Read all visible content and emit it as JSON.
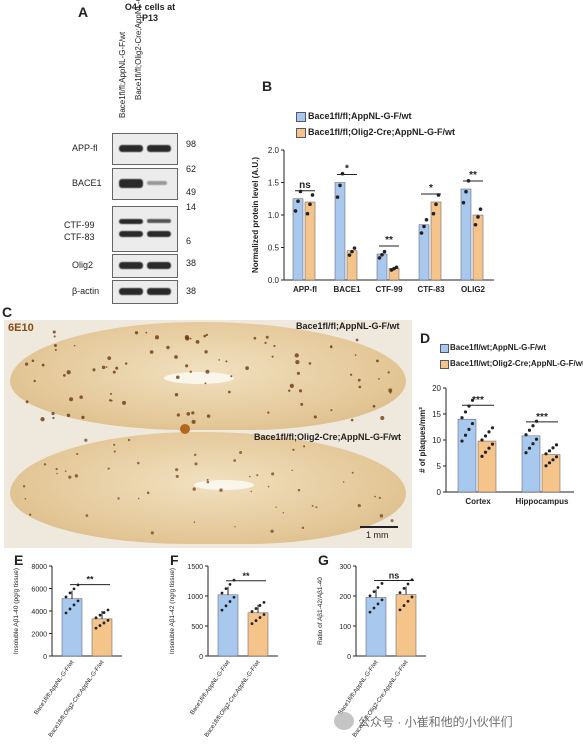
{
  "panels": {
    "A": "A",
    "B": "B",
    "C": "C",
    "D": "D",
    "E": "E",
    "F": "F",
    "G": "G"
  },
  "panelA": {
    "header": "O4+ cells at P13",
    "lane1": "Bace1fl/fl;AppNL-G-F/wt",
    "lane2": "Bace1fl/fl;Olig2-Cre;AppNL-G-F/wt",
    "rows": [
      "APP-fl",
      "BACE1",
      "CTF-99",
      "CTF-83",
      "Olig2",
      "β-actin"
    ],
    "markers": [
      "98",
      "62",
      "49",
      "14",
      "6",
      "38",
      "38"
    ]
  },
  "legendAB": {
    "s1": "Bace1fl/fl;AppNL-G-F/wt",
    "s2": "Bace1fl/fl;Olig2-Cre;AppNL-G-F/wt",
    "c1": "#a8c8ee",
    "c2": "#f4c48a"
  },
  "panelC": {
    "stain": "6E10",
    "top_label": "Bace1fl/fl;AppNL-G-F/wt",
    "bottom_label": "Bace1fl/fl;Olig2-Cre;AppNL-G-F/wt",
    "scale": "1 mm"
  },
  "chart_data": [
    {
      "id": "B",
      "type": "bar",
      "categories": [
        "APP-fl",
        "BACE1",
        "CTF-99",
        "CTF-83",
        "OLIG2"
      ],
      "series": [
        {
          "name": "Bace1fl/fl;AppNL-G-F/wt",
          "values": [
            1.25,
            1.5,
            0.4,
            0.85,
            1.4
          ]
        },
        {
          "name": "Bace1fl/fl;Olig2-Cre;AppNL-G-F/wt",
          "values": [
            1.2,
            0.45,
            0.18,
            1.2,
            1.0
          ]
        }
      ],
      "significance": [
        "ns",
        "*",
        "**",
        "*",
        "**"
      ],
      "ylabel": "Normalized protein level (A.U.)",
      "ylim": [
        0,
        2.0
      ],
      "yticks": [
        0.0,
        0.5,
        1.0,
        1.5,
        2.0
      ]
    },
    {
      "id": "D",
      "type": "bar",
      "categories": [
        "Cortex",
        "Hippocampus"
      ],
      "series": [
        {
          "name": "Bace1fl/wt;AppNL-G-F/wt",
          "values": [
            14,
            10.8
          ]
        },
        {
          "name": "Bace1fl/wt;Olig2-Cre;AppNL-G-F/wt",
          "values": [
            9.8,
            7.2
          ]
        }
      ],
      "significance": [
        "***",
        "***"
      ],
      "ylabel": "# of plaques/mm²",
      "ylim": [
        0,
        20
      ],
      "yticks": [
        0,
        5,
        10,
        15,
        20
      ]
    },
    {
      "id": "E",
      "type": "bar",
      "categories": [
        "Bace1fl/fl;AppNL-G-F/wt",
        "Bace1fl/fl;Olig2-Cre;AppNL-G-F/wt"
      ],
      "values": [
        5100,
        3300
      ],
      "significance": "**",
      "ylabel": "Insoluble Aβ1-40 (pg/g tissue)",
      "ylim": [
        0,
        8000
      ],
      "yticks": [
        0,
        2000,
        4000,
        6000,
        8000
      ]
    },
    {
      "id": "F",
      "type": "bar",
      "categories": [
        "Bace1fl/fl;AppNL-G-F/wt",
        "Bace1fl/fl;Olig2-Cre;AppNL-G-F/wt"
      ],
      "values": [
        1020,
        720
      ],
      "significance": "**",
      "ylabel": "Insoluble Aβ1-42 (ng/g tissue)",
      "ylim": [
        0,
        1500
      ],
      "yticks": [
        0,
        500,
        1000,
        1500
      ]
    },
    {
      "id": "G",
      "type": "bar",
      "categories": [
        "Bace1fl/fl;AppNL-G-F/wt",
        "Bace1fl/fl;Olig2-Cre;AppNL-G-F/wt"
      ],
      "values": [
        195,
        205
      ],
      "significance": "ns",
      "ylabel": "Ratio of Aβ1-42/Aβ1-40",
      "ylim": [
        0,
        300
      ],
      "yticks": [
        0,
        100,
        200,
        300
      ]
    }
  ],
  "watermark": "公众号 · 小崔和他的小伙伴们"
}
